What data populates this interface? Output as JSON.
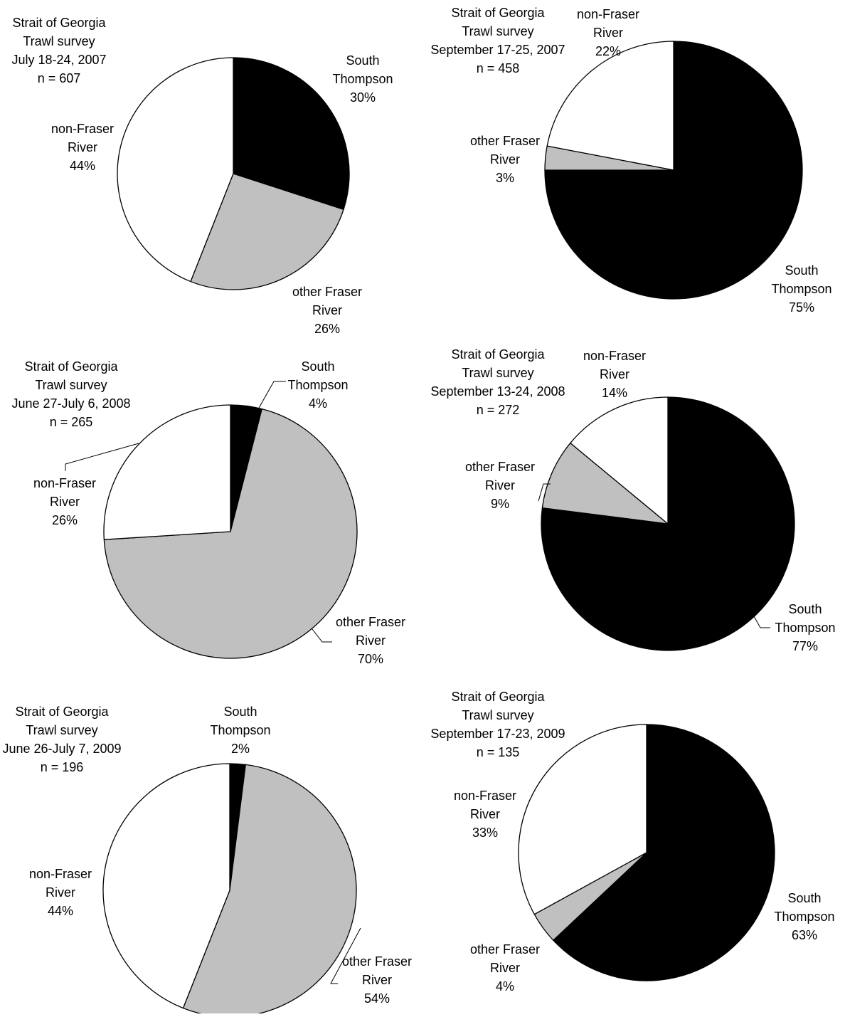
{
  "colors": {
    "South Thompson": "#000000",
    "other Fraser River": "#c0c0c0",
    "non-Fraser River": "#ffffff",
    "outline": "#000000"
  },
  "chart_data": [
    {
      "type": "pie",
      "title_lines": [
        "Strait of Georgia",
        "Trawl survey",
        "July 18-24, 2007",
        "n = 607"
      ],
      "slices": [
        {
          "category": "South Thompson",
          "label_lines": [
            "South",
            "Thompson"
          ],
          "value": 30,
          "percent_label": "30%"
        },
        {
          "category": "other Fraser River",
          "label_lines": [
            "other Fraser",
            "River"
          ],
          "value": 26,
          "percent_label": "26%"
        },
        {
          "category": "non-Fraser River",
          "label_lines": [
            "non-Fraser",
            "River"
          ],
          "value": 44,
          "percent_label": "44%"
        }
      ]
    },
    {
      "type": "pie",
      "title_lines": [
        "Strait of Georgia",
        "Trawl survey",
        "September 17-25, 2007",
        "n = 458"
      ],
      "slices": [
        {
          "category": "South Thompson",
          "label_lines": [
            "South",
            "Thompson"
          ],
          "value": 75,
          "percent_label": "75%"
        },
        {
          "category": "other Fraser River",
          "label_lines": [
            "other Fraser",
            "River"
          ],
          "value": 3,
          "percent_label": "3%"
        },
        {
          "category": "non-Fraser River",
          "label_lines": [
            "non-Fraser",
            "River"
          ],
          "value": 22,
          "percent_label": "22%"
        }
      ]
    },
    {
      "type": "pie",
      "title_lines": [
        "Strait of Georgia",
        "Trawl survey",
        "June 27-July 6, 2008",
        "n = 265"
      ],
      "slices": [
        {
          "category": "South Thompson",
          "label_lines": [
            "South",
            "Thompson"
          ],
          "value": 4,
          "percent_label": "4%"
        },
        {
          "category": "other Fraser River",
          "label_lines": [
            "other Fraser",
            "River"
          ],
          "value": 70,
          "percent_label": "70%"
        },
        {
          "category": "non-Fraser River",
          "label_lines": [
            "non-Fraser",
            "River"
          ],
          "value": 26,
          "percent_label": "26%"
        }
      ]
    },
    {
      "type": "pie",
      "title_lines": [
        "Strait of Georgia",
        "Trawl survey",
        "September 13-24, 2008",
        "n = 272"
      ],
      "slices": [
        {
          "category": "South Thompson",
          "label_lines": [
            "South",
            "Thompson"
          ],
          "value": 77,
          "percent_label": "77%"
        },
        {
          "category": "other Fraser River",
          "label_lines": [
            "other Fraser",
            "River"
          ],
          "value": 9,
          "percent_label": "9%"
        },
        {
          "category": "non-Fraser River",
          "label_lines": [
            "non-Fraser",
            "River"
          ],
          "value": 14,
          "percent_label": "14%"
        }
      ]
    },
    {
      "type": "pie",
      "title_lines": [
        "Strait of Georgia",
        "Trawl survey",
        "June 26-July 7, 2009",
        "n = 196"
      ],
      "slices": [
        {
          "category": "South Thompson",
          "label_lines": [
            "South",
            "Thompson"
          ],
          "value": 2,
          "percent_label": "2%"
        },
        {
          "category": "other Fraser River",
          "label_lines": [
            "other Fraser",
            "River"
          ],
          "value": 54,
          "percent_label": "54%"
        },
        {
          "category": "non-Fraser River",
          "label_lines": [
            "non-Fraser",
            "River"
          ],
          "value": 44,
          "percent_label": "44%"
        }
      ]
    },
    {
      "type": "pie",
      "title_lines": [
        "Strait of Georgia",
        "Trawl survey",
        "September 17-23, 2009",
        "n = 135"
      ],
      "slices": [
        {
          "category": "South Thompson",
          "label_lines": [
            "South",
            "Thompson"
          ],
          "value": 63,
          "percent_label": "63%"
        },
        {
          "category": "other Fraser River",
          "label_lines": [
            "other Fraser",
            "River"
          ],
          "value": 4,
          "percent_label": "4%"
        },
        {
          "category": "non-Fraser River",
          "label_lines": [
            "non-Fraser",
            "River"
          ],
          "value": 33,
          "percent_label": "33%"
        }
      ]
    }
  ]
}
